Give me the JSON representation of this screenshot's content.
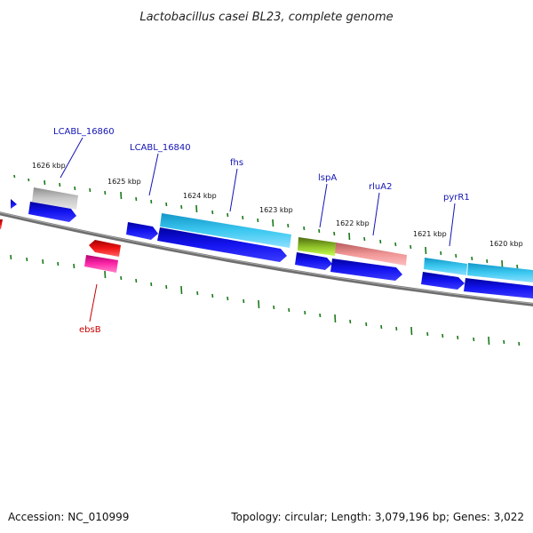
{
  "title": "Lactobacillus casei BL23, complete genome",
  "footer": {
    "accession": "Accession: NC_010999",
    "summary": "Topology: circular; Length: 3,079,196 bp; Genes: 3,022"
  },
  "colors": {
    "backbone": "#808080",
    "tick": "#1a7a1a",
    "label_blue": "#1414b4",
    "label_red": "#c80000",
    "cds_blue": "#0a0ae6",
    "gene_cyan": "#22b4e6",
    "gene_gray": "#b4b4b4",
    "gene_olive": "#6e8c1e",
    "gene_salmon": "#f09090",
    "gene_magenta": "#f0149c",
    "gene_red": "#e61414"
  },
  "kbp_ticks": [
    "1626 kbp",
    "1625 kbp",
    "1624 kbp",
    "1623 kbp",
    "1622 kbp",
    "1621 kbp",
    "1620 kbp"
  ],
  "gene_labels": {
    "lcabl_16860": "LCABL_16860",
    "lcabl_16840": "LCABL_16840",
    "fhs": "fhs",
    "lspA": "lspA",
    "rluA2": "rluA2",
    "pyrR1": "pyrR1",
    "ebsB": "ebsB"
  }
}
